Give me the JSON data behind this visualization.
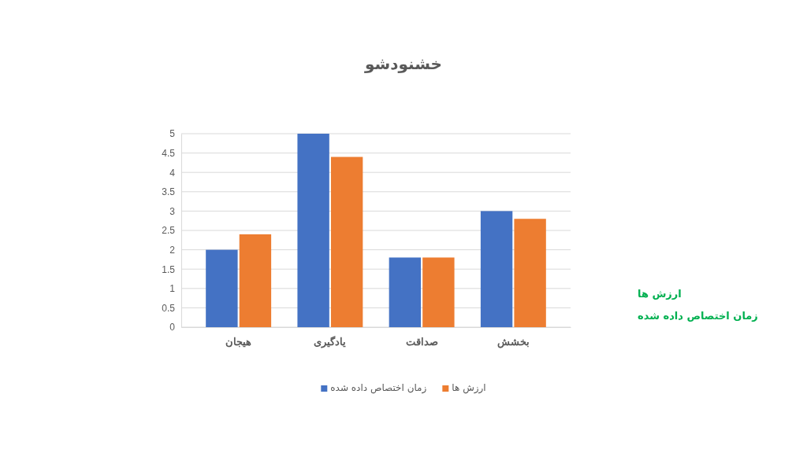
{
  "chart_data": {
    "type": "bar",
    "title": "خشنودشو",
    "categories": [
      "هیجان",
      "یادگیری",
      "صداقت",
      "بخشش"
    ],
    "series": [
      {
        "name": "زمان اختصاص داده شده",
        "color": "#4472c4",
        "values": [
          2,
          5,
          1.8,
          3
        ]
      },
      {
        "name": "ارزش ها",
        "color": "#ed7d31",
        "values": [
          2.4,
          4.4,
          1.8,
          2.8
        ]
      }
    ],
    "ylim": [
      0,
      5
    ],
    "yticks": [
      0,
      0.5,
      1,
      1.5,
      2,
      2.5,
      3,
      3.5,
      4,
      4.5,
      5
    ],
    "grid": "y",
    "legend": "bottom"
  }
}
